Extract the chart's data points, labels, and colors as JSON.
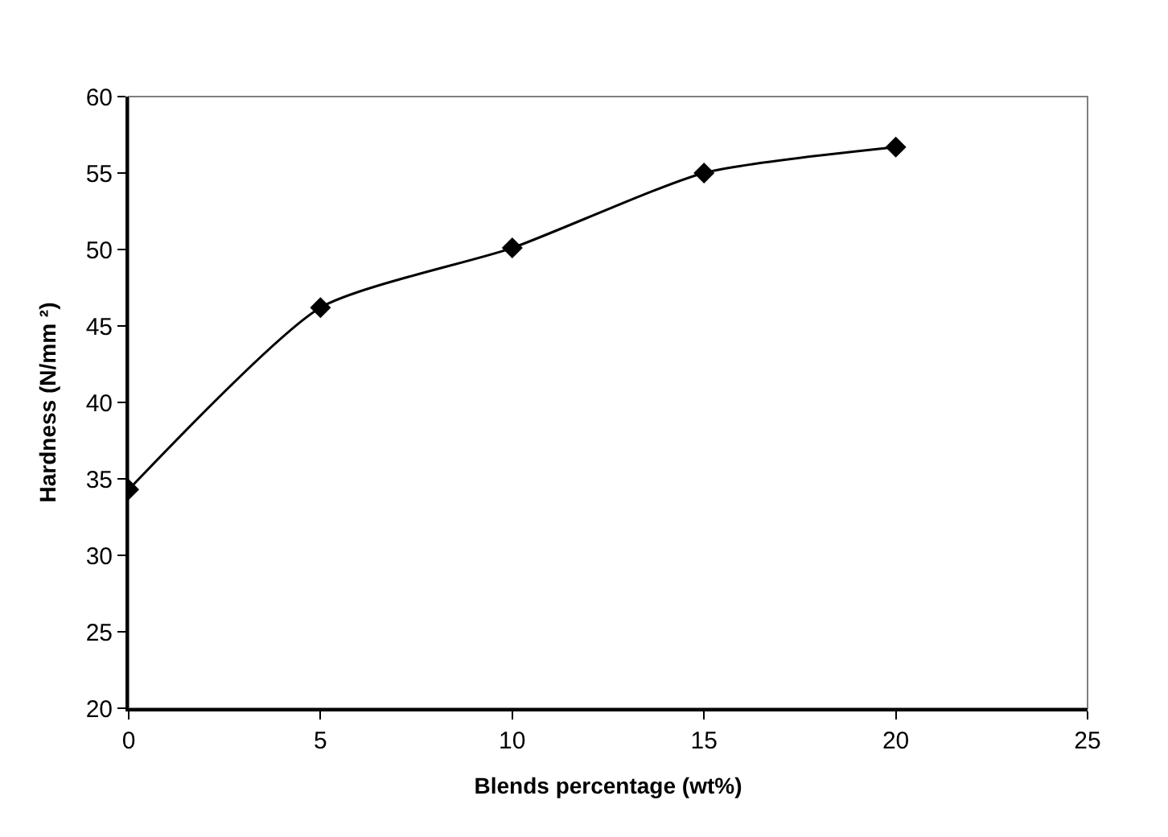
{
  "chart_data": {
    "type": "line",
    "xlabel": "Blends percentage (wt%)",
    "ylabel": "Hardness (N/mm ²)",
    "x": [
      0,
      5,
      10,
      15,
      20
    ],
    "series": [
      {
        "color": "#000000",
        "values": [
          34.3,
          46.2,
          50.1,
          55.0,
          56.7
        ]
      }
    ],
    "xlim": [
      0,
      25
    ],
    "xticks": [
      0,
      5,
      10,
      15,
      20,
      25
    ],
    "ylim": [
      20,
      60
    ],
    "yticks": [
      20,
      25,
      30,
      35,
      40,
      45,
      50,
      55,
      60
    ],
    "grid": false,
    "legend": false,
    "marker": "diamond",
    "line_style": "solid"
  }
}
